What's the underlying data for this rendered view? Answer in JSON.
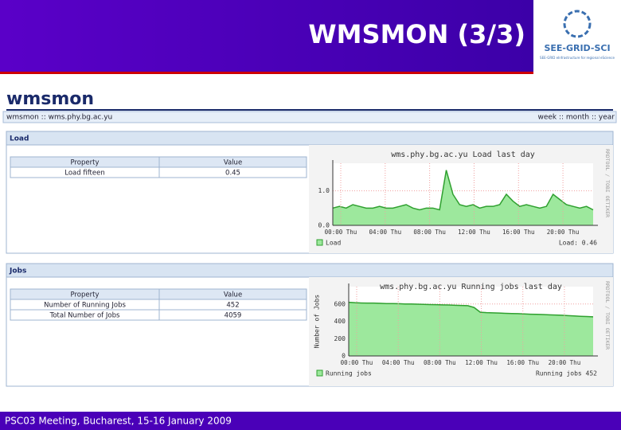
{
  "header": {
    "title": "WMSMON (3/3)",
    "logo_text": "SEE-GRID-SCI",
    "logo_subtitle": "SEE-GRID eInfrastructure for regional eScience"
  },
  "app": {
    "logo": "wmsmon",
    "breadcrumb": "wmsmon :: wms.phy.bg.ac.yu",
    "periods": "week :: month :: year"
  },
  "panels": [
    {
      "title": "Load",
      "table": {
        "header": [
          "Property",
          "Value"
        ],
        "rows": [
          [
            "Load fifteen",
            "0.45"
          ]
        ]
      },
      "graph": {
        "type": "area",
        "title": "wms.phy.bg.ac.yu Load last day",
        "color": "#9de89d",
        "line_color": "#2fa02f",
        "xticks": [
          "00:00 Thu",
          "04:00 Thu",
          "08:00 Thu",
          "12:00 Thu",
          "16:00 Thu",
          "20:00 Thu"
        ],
        "ylim": [
          0,
          1.8
        ],
        "yticks": [
          {
            "value": 0,
            "label": "0.0"
          },
          {
            "value": 1,
            "label": "1.0"
          }
        ],
        "values": [
          0.5,
          0.55,
          0.5,
          0.6,
          0.55,
          0.5,
          0.5,
          0.55,
          0.5,
          0.5,
          0.55,
          0.6,
          0.5,
          0.45,
          0.5,
          0.5,
          0.45,
          1.6,
          0.9,
          0.6,
          0.55,
          0.6,
          0.5,
          0.55,
          0.55,
          0.6,
          0.9,
          0.7,
          0.55,
          0.6,
          0.55,
          0.5,
          0.55,
          0.9,
          0.75,
          0.6,
          0.55,
          0.5,
          0.55,
          0.45
        ],
        "legend": "Load",
        "current": "Load: 0.46",
        "credit": "RRDTOOL / TOBI OETIKER"
      }
    },
    {
      "title": "Jobs",
      "table": {
        "header": [
          "Property",
          "Value"
        ],
        "rows": [
          [
            "Number of Running Jobs",
            "452"
          ],
          [
            "Total Number of Jobs",
            "4059"
          ]
        ]
      },
      "graph": {
        "type": "area",
        "title": "wms.phy.bg.ac.yu Running jobs last day",
        "ylabel": "Number of Jobs",
        "color": "#9de89d",
        "line_color": "#2fa02f",
        "xticks": [
          "00:00 Thu",
          "04:00 Thu",
          "08:00 Thu",
          "12:00 Thu",
          "16:00 Thu",
          "20:00 Thu"
        ],
        "ylim": [
          0,
          800
        ],
        "yticks": [
          0,
          200,
          400,
          600
        ],
        "values": [
          620,
          615,
          612,
          610,
          610,
          608,
          605,
          605,
          603,
          600,
          600,
          598,
          595,
          593,
          592,
          590,
          588,
          585,
          583,
          580,
          560,
          505,
          500,
          498,
          495,
          492,
          490,
          488,
          485,
          482,
          480,
          478,
          475,
          472,
          470,
          466,
          462,
          458,
          455,
          452
        ],
        "legend": "Running jobs",
        "current": "Running jobs 452",
        "credit": "RRDTOOL / TOBI OETIKER"
      }
    }
  ],
  "footer": "PSC03 Meeting, Bucharest, 15-16 January 2009"
}
